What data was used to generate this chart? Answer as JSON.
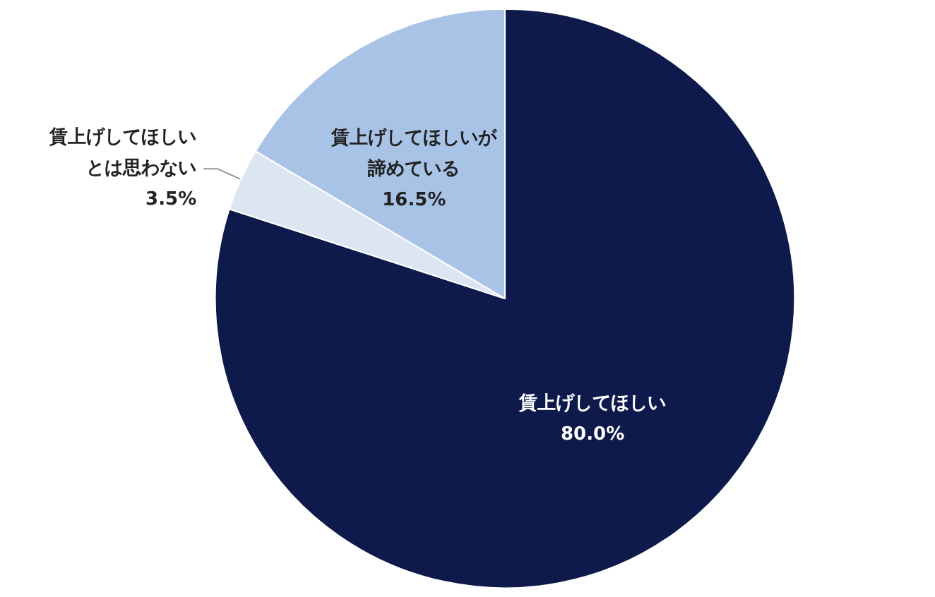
{
  "chart_data": {
    "type": "pie",
    "categories": [
      "賃上げしてほしい",
      "賃上げしてほしいとは思わない",
      "賃上げしてほしいが諦めている"
    ],
    "values": [
      80.0,
      3.5,
      16.5
    ],
    "colors": [
      "#0e1a4b",
      "#dce6f2",
      "#a8c3e6"
    ],
    "value_labels": [
      "80.0%",
      "3.5%",
      "16.5%"
    ],
    "legend": false
  }
}
